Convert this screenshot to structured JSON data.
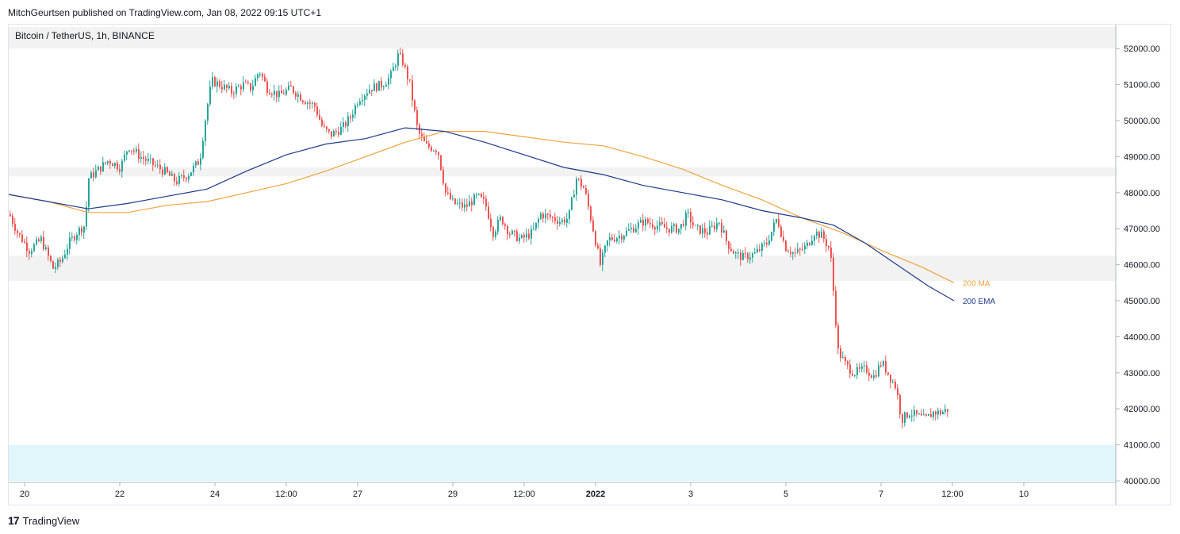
{
  "header": {
    "published_by": "MitchGeurtsen published on TradingView.com, Jan 08, 2022 09:15 UTC+1"
  },
  "footer": {
    "brand": "TradingView",
    "logo_icon": "tradingview-logo-icon"
  },
  "colors": {
    "up": "#26a69a",
    "down": "#ef5350",
    "ma": "#f0a33c",
    "ema": "#1e3a8a",
    "zone_gray": "#f2f2f2",
    "zone_blue": "#e0f6fb",
    "axis_text": "#131722"
  },
  "chart_data": {
    "type": "candlestick",
    "title": "Bitcoin / TetherUS, 1h, BINANCE",
    "x_ticks": [
      "20",
      "22",
      "24",
      "12:00",
      "27",
      "29",
      "12:00",
      "2022",
      "3",
      "5",
      "7",
      "12:00",
      "10"
    ],
    "y_ticks": [
      "40000.00",
      "41000.00",
      "42000.00",
      "43000.00",
      "44000.00",
      "45000.00",
      "46000.00",
      "47000.00",
      "48000.00",
      "49000.00",
      "50000.00",
      "51000.00",
      "52000.00"
    ],
    "ylim": [
      40000,
      52500
    ],
    "price_path": [
      [
        0,
        47400
      ],
      [
        10,
        46900
      ],
      [
        25,
        46400
      ],
      [
        40,
        46700
      ],
      [
        55,
        45900
      ],
      [
        65,
        46100
      ],
      [
        75,
        46600
      ],
      [
        85,
        46900
      ],
      [
        95,
        47100
      ],
      [
        100,
        48400
      ],
      [
        110,
        48600
      ],
      [
        125,
        48900
      ],
      [
        140,
        48700
      ],
      [
        150,
        49300
      ],
      [
        165,
        49000
      ],
      [
        180,
        48800
      ],
      [
        195,
        48600
      ],
      [
        210,
        48300
      ],
      [
        225,
        48500
      ],
      [
        240,
        48900
      ],
      [
        248,
        50200
      ],
      [
        255,
        51100
      ],
      [
        265,
        51000
      ],
      [
        280,
        50800
      ],
      [
        295,
        51000
      ],
      [
        305,
        50900
      ],
      [
        315,
        51400
      ],
      [
        325,
        50900
      ],
      [
        340,
        50700
      ],
      [
        355,
        50900
      ],
      [
        370,
        50600
      ],
      [
        385,
        50400
      ],
      [
        395,
        49800
      ],
      [
        405,
        49600
      ],
      [
        420,
        49800
      ],
      [
        430,
        50100
      ],
      [
        440,
        50600
      ],
      [
        455,
        50900
      ],
      [
        470,
        51000
      ],
      [
        480,
        51200
      ],
      [
        490,
        51800
      ],
      [
        495,
        51700
      ],
      [
        505,
        51000
      ],
      [
        515,
        49700
      ],
      [
        525,
        49300
      ],
      [
        540,
        49200
      ],
      [
        550,
        48000
      ],
      [
        560,
        47700
      ],
      [
        575,
        47600
      ],
      [
        590,
        47900
      ],
      [
        600,
        47700
      ],
      [
        610,
        46900
      ],
      [
        620,
        47300
      ],
      [
        630,
        46900
      ],
      [
        645,
        46700
      ],
      [
        660,
        46900
      ],
      [
        670,
        47400
      ],
      [
        685,
        47300
      ],
      [
        695,
        47200
      ],
      [
        705,
        47300
      ],
      [
        715,
        48400
      ],
      [
        725,
        48100
      ],
      [
        735,
        47100
      ],
      [
        745,
        46000
      ],
      [
        755,
        46700
      ],
      [
        770,
        46800
      ],
      [
        785,
        47000
      ],
      [
        800,
        47200
      ],
      [
        815,
        47100
      ],
      [
        830,
        47000
      ],
      [
        845,
        47000
      ],
      [
        855,
        47400
      ],
      [
        865,
        47000
      ],
      [
        880,
        46900
      ],
      [
        895,
        47200
      ],
      [
        905,
        46600
      ],
      [
        915,
        46300
      ],
      [
        925,
        46200
      ],
      [
        940,
        46300
      ],
      [
        955,
        46600
      ],
      [
        968,
        47300
      ],
      [
        978,
        46500
      ],
      [
        990,
        46300
      ],
      [
        1005,
        46500
      ],
      [
        1015,
        46900
      ],
      [
        1025,
        46800
      ],
      [
        1035,
        46400
      ],
      [
        1040,
        45000
      ],
      [
        1045,
        43600
      ],
      [
        1055,
        43200
      ],
      [
        1065,
        43000
      ],
      [
        1080,
        43100
      ],
      [
        1090,
        42900
      ],
      [
        1100,
        43300
      ],
      [
        1110,
        42900
      ],
      [
        1118,
        42600
      ],
      [
        1125,
        41700
      ],
      [
        1135,
        41900
      ],
      [
        1145,
        41800
      ],
      [
        1155,
        41700
      ],
      [
        1165,
        41900
      ],
      [
        1175,
        41900
      ],
      [
        1185,
        42000
      ],
      [
        1192,
        42100
      ]
    ],
    "series": [
      {
        "name": "200 MA",
        "path": [
          [
            0,
            47950
          ],
          [
            50,
            47750
          ],
          [
            100,
            47450
          ],
          [
            150,
            47450
          ],
          [
            200,
            47650
          ],
          [
            250,
            47750
          ],
          [
            300,
            48000
          ],
          [
            350,
            48250
          ],
          [
            400,
            48600
          ],
          [
            450,
            49000
          ],
          [
            500,
            49400
          ],
          [
            550,
            49700
          ],
          [
            600,
            49700
          ],
          [
            650,
            49550
          ],
          [
            700,
            49400
          ],
          [
            750,
            49300
          ],
          [
            800,
            49000
          ],
          [
            850,
            48650
          ],
          [
            900,
            48200
          ],
          [
            950,
            47800
          ],
          [
            1000,
            47300
          ],
          [
            1050,
            46900
          ],
          [
            1100,
            46400
          ],
          [
            1150,
            45950
          ],
          [
            1192,
            45500
          ]
        ]
      },
      {
        "name": "200 EMA",
        "path": [
          [
            0,
            47950
          ],
          [
            50,
            47750
          ],
          [
            100,
            47550
          ],
          [
            150,
            47700
          ],
          [
            200,
            47900
          ],
          [
            250,
            48100
          ],
          [
            300,
            48600
          ],
          [
            350,
            49050
          ],
          [
            400,
            49350
          ],
          [
            450,
            49500
          ],
          [
            500,
            49800
          ],
          [
            550,
            49700
          ],
          [
            600,
            49400
          ],
          [
            650,
            49050
          ],
          [
            700,
            48700
          ],
          [
            750,
            48500
          ],
          [
            800,
            48200
          ],
          [
            850,
            48000
          ],
          [
            900,
            47800
          ],
          [
            950,
            47500
          ],
          [
            1000,
            47300
          ],
          [
            1040,
            47100
          ],
          [
            1080,
            46600
          ],
          [
            1120,
            46000
          ],
          [
            1160,
            45400
          ],
          [
            1192,
            45000
          ]
        ]
      }
    ],
    "zones": [
      {
        "from": 52000,
        "to": 52600,
        "color": "gray"
      },
      {
        "from": 48450,
        "to": 48700,
        "color": "gray"
      },
      {
        "from": 45550,
        "to": 46250,
        "color": "gray"
      },
      {
        "from": 40000,
        "to": 41000,
        "color": "blue"
      }
    ]
  }
}
